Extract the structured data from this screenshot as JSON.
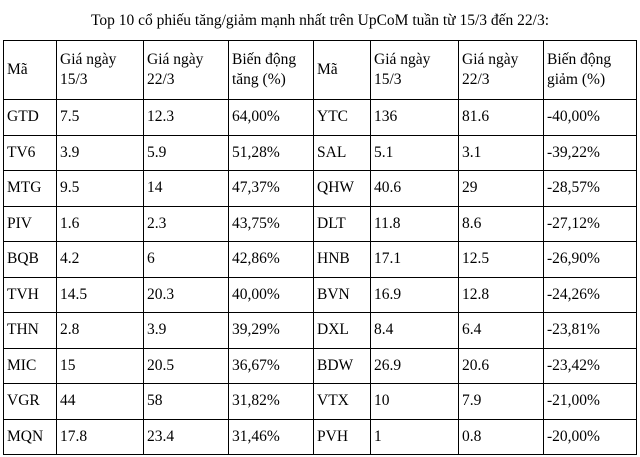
{
  "title": "Top 10 cổ phiếu tăng/giảm mạnh nhất trên UpCoM tuần từ 15/3 đến 22/3:",
  "table": {
    "header": [
      "Mã",
      "Giá ngày 15/3",
      "Giá ngày 22/3",
      "Biến động tăng (%)",
      "Mã",
      "Giá ngày 15/3",
      "Giá ngày 22/3",
      "Biến động giảm (%)"
    ],
    "rows": [
      [
        "GTD",
        "7.5",
        "12.3",
        "64,00%",
        "YTC",
        "136",
        "81.6",
        "-40,00%"
      ],
      [
        "TV6",
        "3.9",
        "5.9",
        "51,28%",
        "SAL",
        "5.1",
        "3.1",
        "-39,22%"
      ],
      [
        "MTG",
        "9.5",
        "14",
        "47,37%",
        "QHW",
        "40.6",
        "29",
        "-28,57%"
      ],
      [
        "PIV",
        "1.6",
        "2.3",
        "43,75%",
        "DLT",
        "11.8",
        "8.6",
        "-27,12%"
      ],
      [
        "BQB",
        "4.2",
        "6",
        "42,86%",
        "HNB",
        "17.1",
        "12.5",
        "-26,90%"
      ],
      [
        "TVH",
        "14.5",
        "20.3",
        "40,00%",
        "BVN",
        "16.9",
        "12.8",
        "-24,26%"
      ],
      [
        "THN",
        "2.8",
        "3.9",
        "39,29%",
        "DXL",
        "8.4",
        "6.4",
        "-23,81%"
      ],
      [
        "MIC",
        "15",
        "20.5",
        "36,67%",
        "BDW",
        "26.9",
        "20.6",
        "-23,42%"
      ],
      [
        "VGR",
        "44",
        "58",
        "31,82%",
        "VTX",
        "10",
        "7.9",
        "-21,00%"
      ],
      [
        "MQN",
        "17.8",
        "23.4",
        "31,46%",
        "PVH",
        "1",
        "0.8",
        "-20,00%"
      ]
    ]
  }
}
